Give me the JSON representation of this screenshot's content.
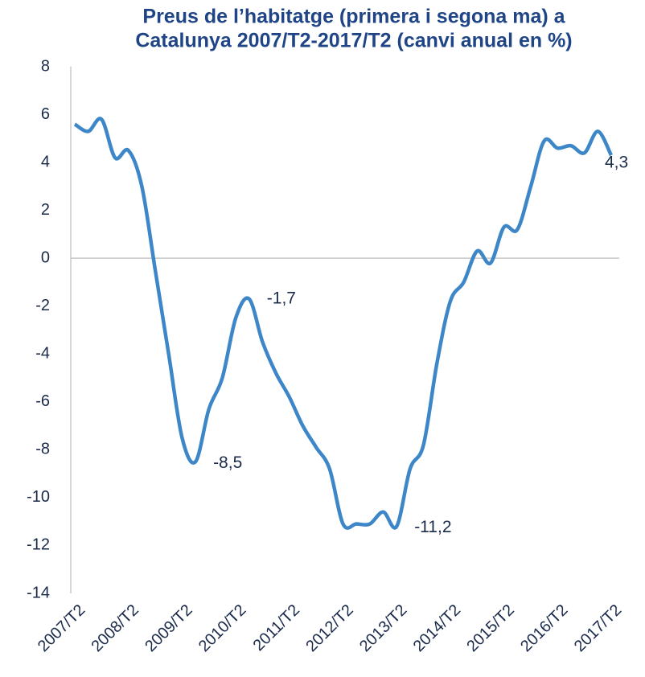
{
  "chart_data": {
    "type": "line",
    "title": [
      "Preus de l’habitatge (primera i segona ma) a",
      "Catalunya 2007/T2-2017/T2 (canvi anual en %)"
    ],
    "categories": [
      "2007/T2",
      null,
      null,
      null,
      "2008/T2",
      null,
      null,
      null,
      "2009/T2",
      null,
      null,
      null,
      "2010/T2",
      null,
      null,
      null,
      "2011/T2",
      null,
      null,
      null,
      "2012/T2",
      null,
      null,
      null,
      "2013/T2",
      null,
      null,
      null,
      "2014/T2",
      null,
      null,
      null,
      "2015/T2",
      null,
      null,
      null,
      "2016/T2",
      null,
      null,
      null,
      "2017/T2"
    ],
    "series": [
      {
        "name": "Canvi anual",
        "color": "#3d87c9",
        "values": [
          5.6,
          5.3,
          5.8,
          4.2,
          4.5,
          3.0,
          -0.5,
          -4.0,
          -7.5,
          -8.5,
          -6.3,
          -5.0,
          -2.5,
          -1.7,
          -3.5,
          -4.8,
          -5.8,
          -7.0,
          -7.9,
          -8.8,
          -11.1,
          -11.1,
          -11.1,
          -10.6,
          -11.2,
          -8.8,
          -7.8,
          -4.4,
          -1.8,
          -1.0,
          0.3,
          -0.2,
          1.3,
          1.2,
          3.0,
          4.9,
          4.6,
          4.7,
          4.4,
          5.3,
          4.3
        ],
        "value_labels": [
          null,
          null,
          null,
          null,
          null,
          null,
          null,
          null,
          null,
          "-8,5",
          null,
          null,
          null,
          "-1,7",
          null,
          null,
          null,
          null,
          null,
          null,
          null,
          null,
          null,
          null,
          "-11,2",
          null,
          null,
          null,
          null,
          null,
          null,
          null,
          null,
          null,
          null,
          null,
          null,
          null,
          null,
          null,
          "4,3"
        ]
      }
    ],
    "ylim": [
      -14,
      8
    ],
    "yticks": [
      -14,
      -12,
      -10,
      -8,
      -6,
      -4,
      -2,
      0,
      2,
      4,
      6,
      8
    ],
    "grid": false
  }
}
